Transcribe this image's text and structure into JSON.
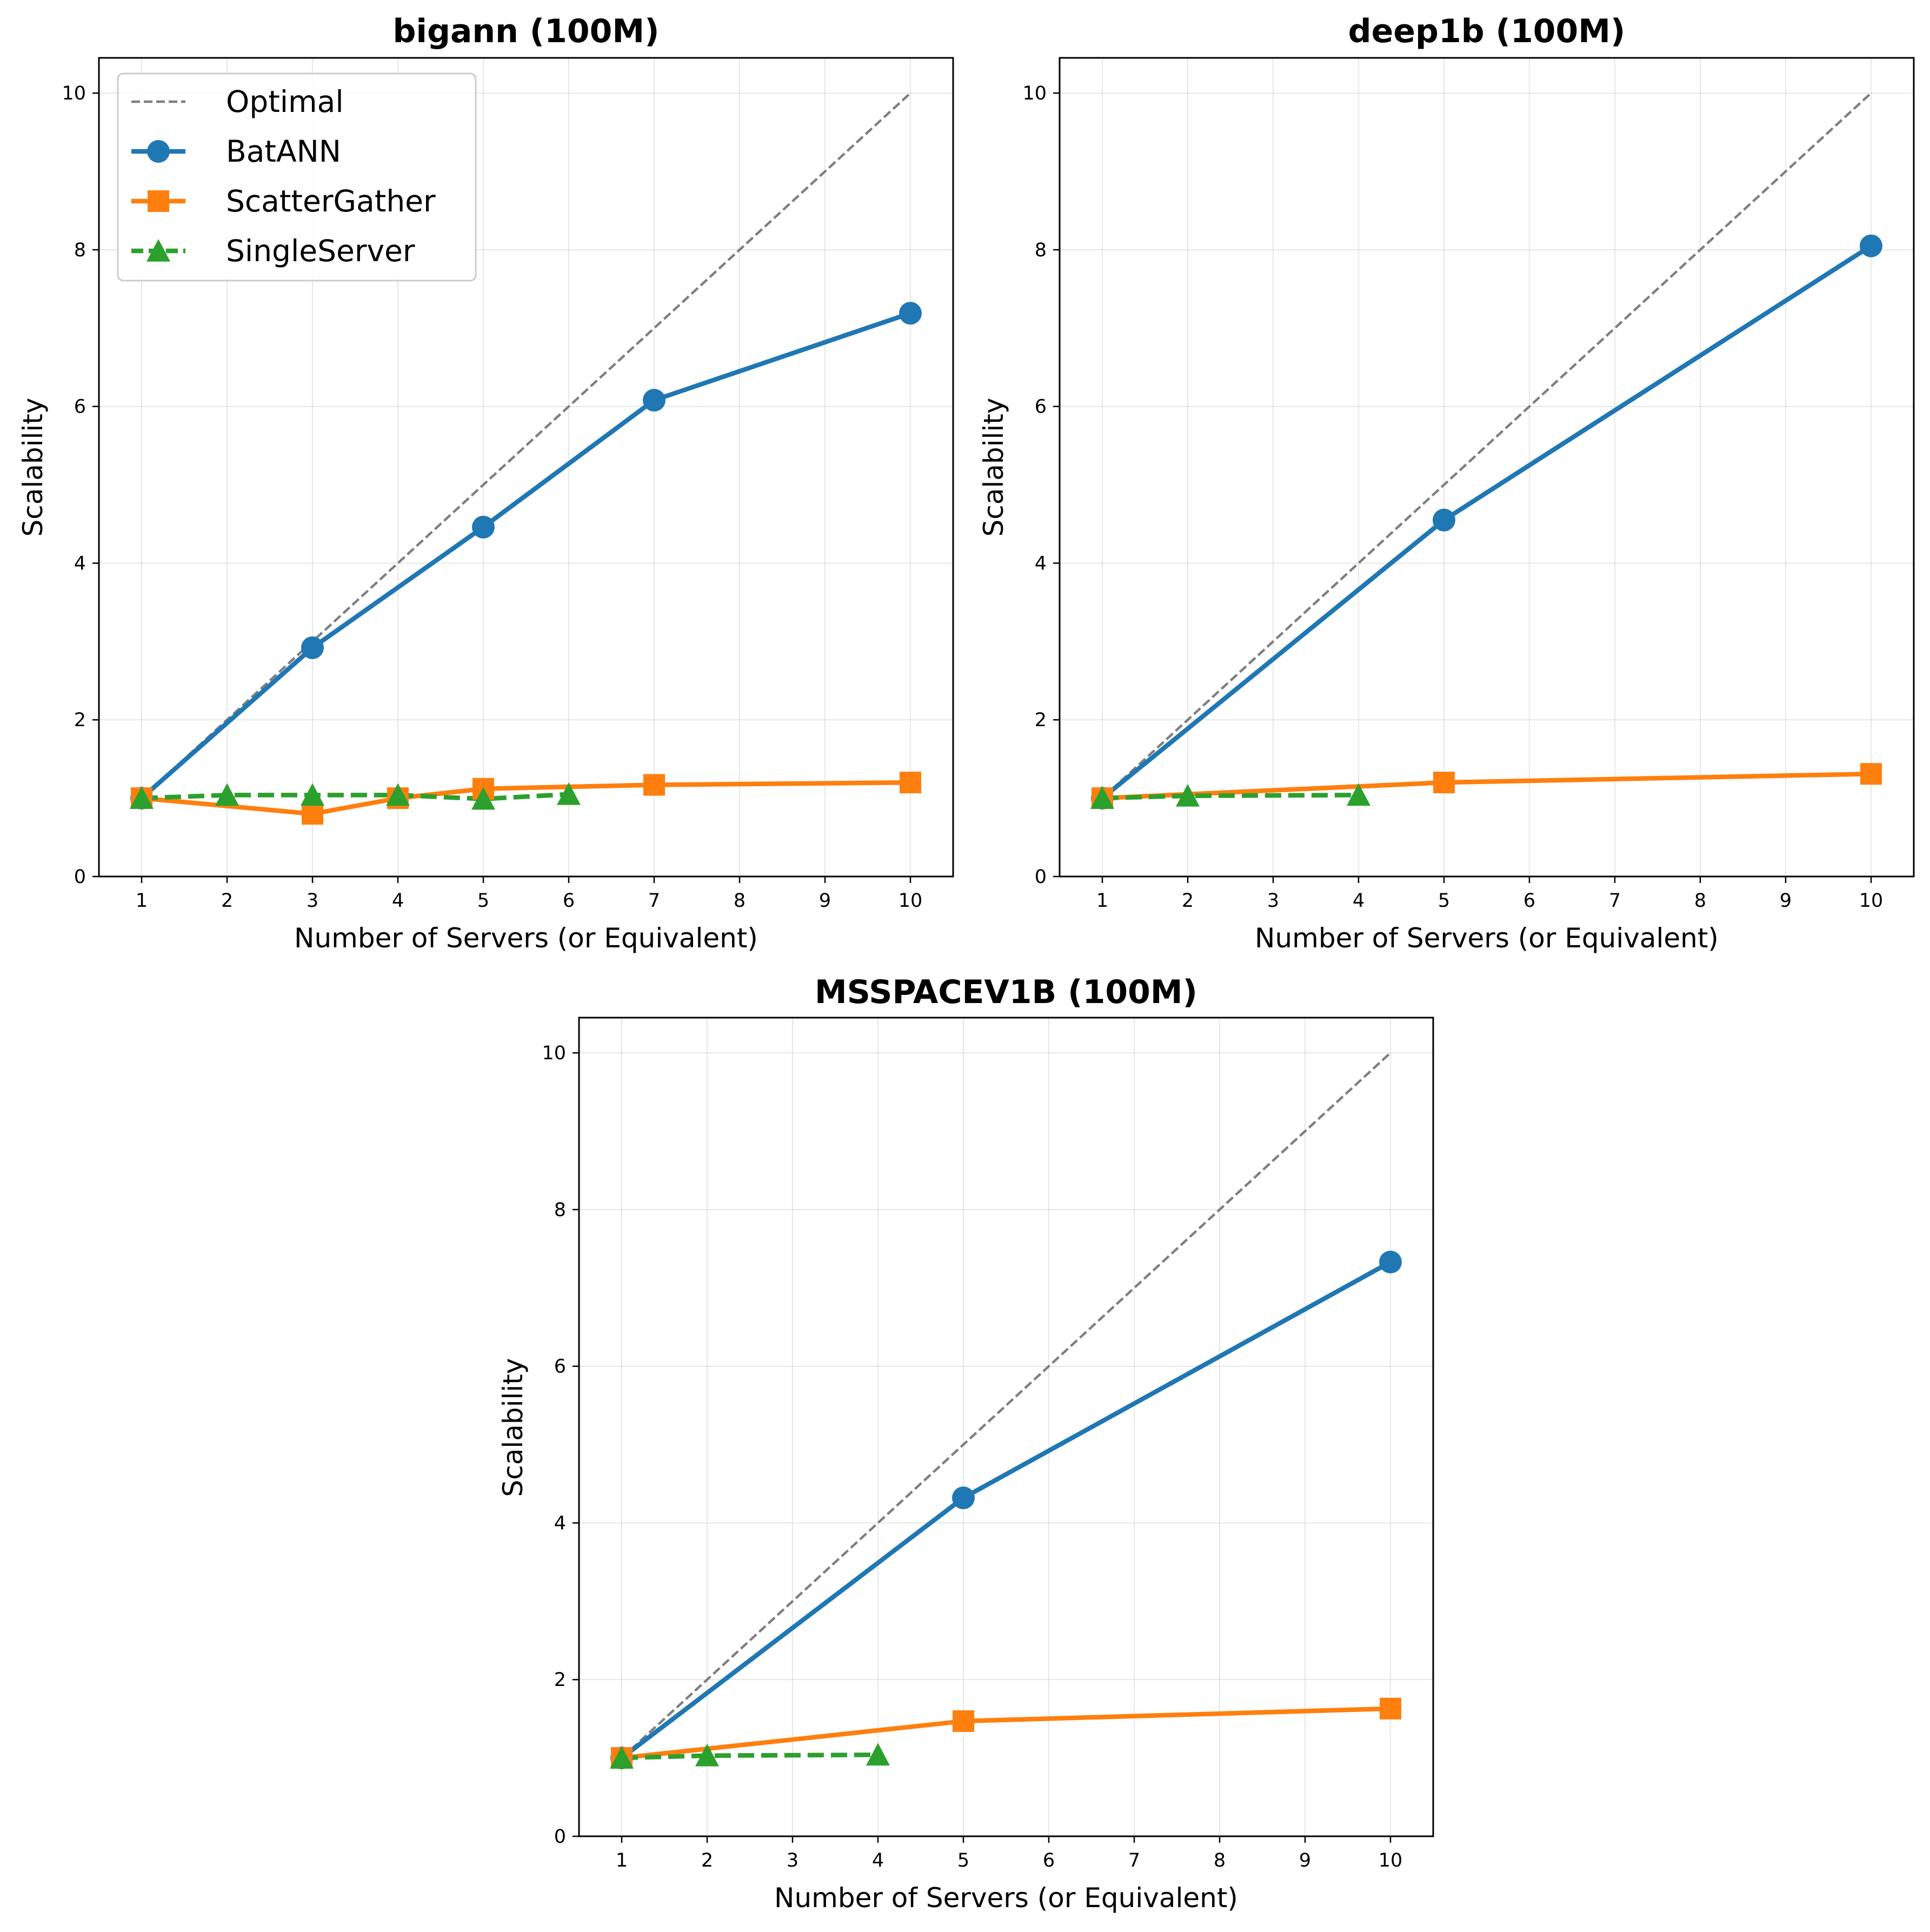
{
  "chart_data": [
    {
      "type": "line",
      "title": "bigann (100M)",
      "xlabel": "Number of Servers (or Equivalent)",
      "ylabel": "Scalability",
      "xlim": [
        0.5,
        10.5
      ],
      "ylim": [
        0,
        10.45
      ],
      "xticks": [
        1,
        2,
        3,
        4,
        5,
        6,
        7,
        8,
        9,
        10
      ],
      "yticks": [
        0,
        2,
        4,
        6,
        8,
        10
      ],
      "grid": true,
      "legend": "upper-left",
      "series": [
        {
          "name": "Optimal",
          "style": "dashed-thin",
          "color": "#7f7f7f",
          "marker": "none",
          "x": [
            1,
            10
          ],
          "y": [
            1,
            10
          ]
        },
        {
          "name": "BatANN",
          "style": "solid",
          "color": "#1f77b4",
          "marker": "circle",
          "x": [
            1,
            3,
            5,
            7,
            10
          ],
          "y": [
            1.0,
            2.92,
            4.46,
            6.08,
            7.19
          ]
        },
        {
          "name": "ScatterGather",
          "style": "solid",
          "color": "#ff7f0e",
          "marker": "square",
          "x": [
            1,
            3,
            4,
            5,
            7,
            10
          ],
          "y": [
            1.0,
            0.8,
            1.0,
            1.12,
            1.17,
            1.2
          ]
        },
        {
          "name": "SingleServer",
          "style": "dashed",
          "color": "#2ca02c",
          "marker": "triangle",
          "x": [
            1,
            2,
            3,
            4,
            5,
            6
          ],
          "y": [
            1.0,
            1.04,
            1.04,
            1.04,
            0.99,
            1.05
          ]
        }
      ]
    },
    {
      "type": "line",
      "title": "deep1b (100M)",
      "xlabel": "Number of Servers (or Equivalent)",
      "ylabel": "Scalability",
      "xlim": [
        0.5,
        10.5
      ],
      "ylim": [
        0,
        10.45
      ],
      "xticks": [
        1,
        2,
        3,
        4,
        5,
        6,
        7,
        8,
        9,
        10
      ],
      "yticks": [
        0,
        2,
        4,
        6,
        8,
        10
      ],
      "grid": true,
      "series": [
        {
          "name": "Optimal",
          "style": "dashed-thin",
          "color": "#7f7f7f",
          "marker": "none",
          "x": [
            1,
            10
          ],
          "y": [
            1,
            10
          ]
        },
        {
          "name": "BatANN",
          "style": "solid",
          "color": "#1f77b4",
          "marker": "circle",
          "x": [
            1,
            5,
            10
          ],
          "y": [
            1.0,
            4.55,
            8.05
          ]
        },
        {
          "name": "ScatterGather",
          "style": "solid",
          "color": "#ff7f0e",
          "marker": "square",
          "x": [
            1,
            5,
            10
          ],
          "y": [
            1.0,
            1.2,
            1.31
          ]
        },
        {
          "name": "SingleServer",
          "style": "dashed",
          "color": "#2ca02c",
          "marker": "triangle",
          "x": [
            1,
            2,
            4
          ],
          "y": [
            1.0,
            1.03,
            1.04
          ]
        }
      ]
    },
    {
      "type": "line",
      "title": "MSSPACEV1B (100M)",
      "xlabel": "Number of Servers (or Equivalent)",
      "ylabel": "Scalability",
      "xlim": [
        0.5,
        10.5
      ],
      "ylim": [
        0,
        10.45
      ],
      "xticks": [
        1,
        2,
        3,
        4,
        5,
        6,
        7,
        8,
        9,
        10
      ],
      "yticks": [
        0,
        2,
        4,
        6,
        8,
        10
      ],
      "grid": true,
      "series": [
        {
          "name": "Optimal",
          "style": "dashed-thin",
          "color": "#7f7f7f",
          "marker": "none",
          "x": [
            1,
            10
          ],
          "y": [
            1,
            10
          ]
        },
        {
          "name": "BatANN",
          "style": "solid",
          "color": "#1f77b4",
          "marker": "circle",
          "x": [
            1,
            5,
            10
          ],
          "y": [
            1.0,
            4.32,
            7.33
          ]
        },
        {
          "name": "ScatterGather",
          "style": "solid",
          "color": "#ff7f0e",
          "marker": "square",
          "x": [
            1,
            5,
            10
          ],
          "y": [
            1.0,
            1.47,
            1.63
          ]
        },
        {
          "name": "SingleServer",
          "style": "dashed",
          "color": "#2ca02c",
          "marker": "triangle",
          "x": [
            1,
            2,
            4
          ],
          "y": [
            1.0,
            1.03,
            1.04
          ]
        }
      ]
    }
  ]
}
